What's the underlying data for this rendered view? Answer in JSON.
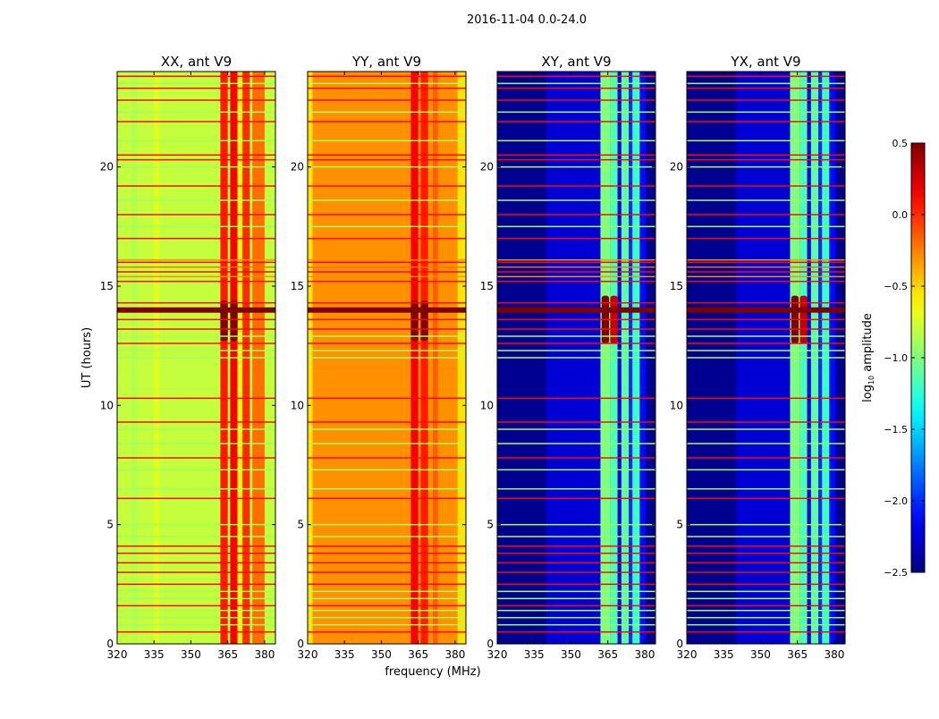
{
  "chart_data": {
    "type": "heatmap",
    "title": "2016-11-04 0.0-24.0",
    "xlabel": "frequency (MHz)",
    "ylabel": "UT (hours)",
    "xlim": [
      320,
      384.4
    ],
    "ylim": [
      0,
      24
    ],
    "xticks": [
      "320",
      "335",
      "350",
      "365",
      "380"
    ],
    "xtick_values": [
      320,
      335,
      350,
      365,
      380
    ],
    "yticks": [
      "0",
      "5",
      "10",
      "15",
      "20"
    ],
    "ytick_values": [
      0,
      5,
      10,
      15,
      20
    ],
    "colormap": "jet",
    "colorbar": {
      "label_main": "log",
      "label_sub": "10",
      "label_rest": " amplitude",
      "range": [
        -2.5,
        0.5
      ],
      "ticks": [
        "0.5",
        "0.0",
        "−0.5",
        "−1.0",
        "−1.5",
        "−2.0",
        "−2.5"
      ],
      "tick_values": [
        0.5,
        0.0,
        -0.5,
        -1.0,
        -1.5,
        -2.0,
        -2.5
      ]
    },
    "panels": [
      {
        "title": "XX, ant V9",
        "base": -0.8,
        "bands": [
          [
            362,
            365,
            0.05
          ],
          [
            366,
            369,
            0.15
          ],
          [
            369,
            371,
            -0.6
          ],
          [
            371,
            374,
            0.0
          ],
          [
            375,
            380,
            -0.2
          ],
          [
            335,
            337,
            -0.7
          ],
          [
            326,
            328,
            -0.85
          ]
        ],
        "blobs": [
          [
            362,
            365,
            12.7,
            14.4,
            0.5
          ],
          [
            366,
            369,
            12.7,
            14.4,
            0.5
          ]
        ]
      },
      {
        "title": "YY, ant V9",
        "base": -0.3,
        "bands": [
          [
            320,
            322,
            -0.55
          ],
          [
            362,
            365,
            0.15
          ],
          [
            366,
            369,
            0.05
          ],
          [
            371,
            373,
            -0.15
          ],
          [
            381,
            384.4,
            -0.55
          ]
        ],
        "blobs": [
          [
            362,
            365,
            12.7,
            14.4,
            0.5
          ],
          [
            366,
            369,
            12.7,
            14.4,
            0.5
          ]
        ]
      },
      {
        "title": "XY, ant V9",
        "base": -2.45,
        "bands": [
          [
            340,
            362,
            -2.25
          ],
          [
            362,
            366,
            -1.0
          ],
          [
            366,
            369,
            -1.15
          ],
          [
            369,
            370.5,
            -2.2
          ],
          [
            370.5,
            373.5,
            -1.1
          ],
          [
            373.5,
            375,
            -2.0
          ],
          [
            375,
            378,
            -1.2
          ],
          [
            378,
            380.5,
            -2.1
          ]
        ],
        "blobs": [
          [
            362.5,
            365.5,
            12.6,
            14.6,
            0.5
          ],
          [
            366,
            369,
            12.6,
            14.6,
            0.3
          ]
        ]
      },
      {
        "title": "YX, ant V9",
        "base": -2.45,
        "bands": [
          [
            340,
            362,
            -2.25
          ],
          [
            362,
            366,
            -1.0
          ],
          [
            366,
            369,
            -1.15
          ],
          [
            369,
            370.5,
            -2.2
          ],
          [
            370.5,
            373.5,
            -1.1
          ],
          [
            373.5,
            375,
            -2.0
          ],
          [
            375,
            378,
            -1.2
          ],
          [
            378,
            380.5,
            -2.1
          ]
        ],
        "blobs": [
          [
            362.5,
            365.5,
            12.6,
            14.6,
            0.5
          ],
          [
            366,
            369,
            12.6,
            14.6,
            0.3
          ]
        ]
      }
    ],
    "rfi_lines": [
      [
        0.5,
        0.1
      ],
      [
        0.8,
        -0.9
      ],
      [
        1.1,
        -0.9
      ],
      [
        1.4,
        -0.9
      ],
      [
        1.6,
        0.1
      ],
      [
        1.9,
        -0.9
      ],
      [
        2.2,
        -0.9
      ],
      [
        2.5,
        0.1
      ],
      [
        3.0,
        0.1
      ],
      [
        3.4,
        0.1
      ],
      [
        3.8,
        0.1
      ],
      [
        4.1,
        0.1
      ],
      [
        4.5,
        -0.9
      ],
      [
        5.0,
        -0.9
      ],
      [
        6.1,
        0.1
      ],
      [
        6.5,
        -0.9
      ],
      [
        7.3,
        -0.9
      ],
      [
        7.8,
        0.1
      ],
      [
        8.4,
        -0.9
      ],
      [
        9.0,
        -0.9
      ],
      [
        9.3,
        0.1
      ],
      [
        10.3,
        0.1
      ],
      [
        12.0,
        -0.9
      ],
      [
        12.3,
        -0.9
      ],
      [
        12.6,
        0.1
      ],
      [
        12.9,
        -0.9
      ],
      [
        13.2,
        0.1
      ],
      [
        13.6,
        0.1
      ],
      [
        14.3,
        0.1
      ],
      [
        15.2,
        0.1
      ],
      [
        15.4,
        -0.3
      ],
      [
        15.6,
        0.1
      ],
      [
        15.8,
        -0.2
      ],
      [
        16.0,
        0.1
      ],
      [
        16.1,
        -0.3
      ],
      [
        17.0,
        0.1
      ],
      [
        17.5,
        -0.9
      ],
      [
        18.0,
        0.1
      ],
      [
        18.6,
        -0.9
      ],
      [
        19.2,
        0.1
      ],
      [
        20.0,
        -0.9
      ],
      [
        20.3,
        0.1
      ],
      [
        20.5,
        0.1
      ],
      [
        21.1,
        -0.9
      ],
      [
        21.9,
        0.1
      ],
      [
        22.3,
        -0.9
      ],
      [
        22.8,
        0.1
      ],
      [
        23.3,
        0.1
      ],
      [
        23.5,
        -0.9
      ],
      [
        23.8,
        0.1
      ]
    ],
    "thick_line": {
      "hour": 14.0,
      "value": 0.5
    }
  }
}
